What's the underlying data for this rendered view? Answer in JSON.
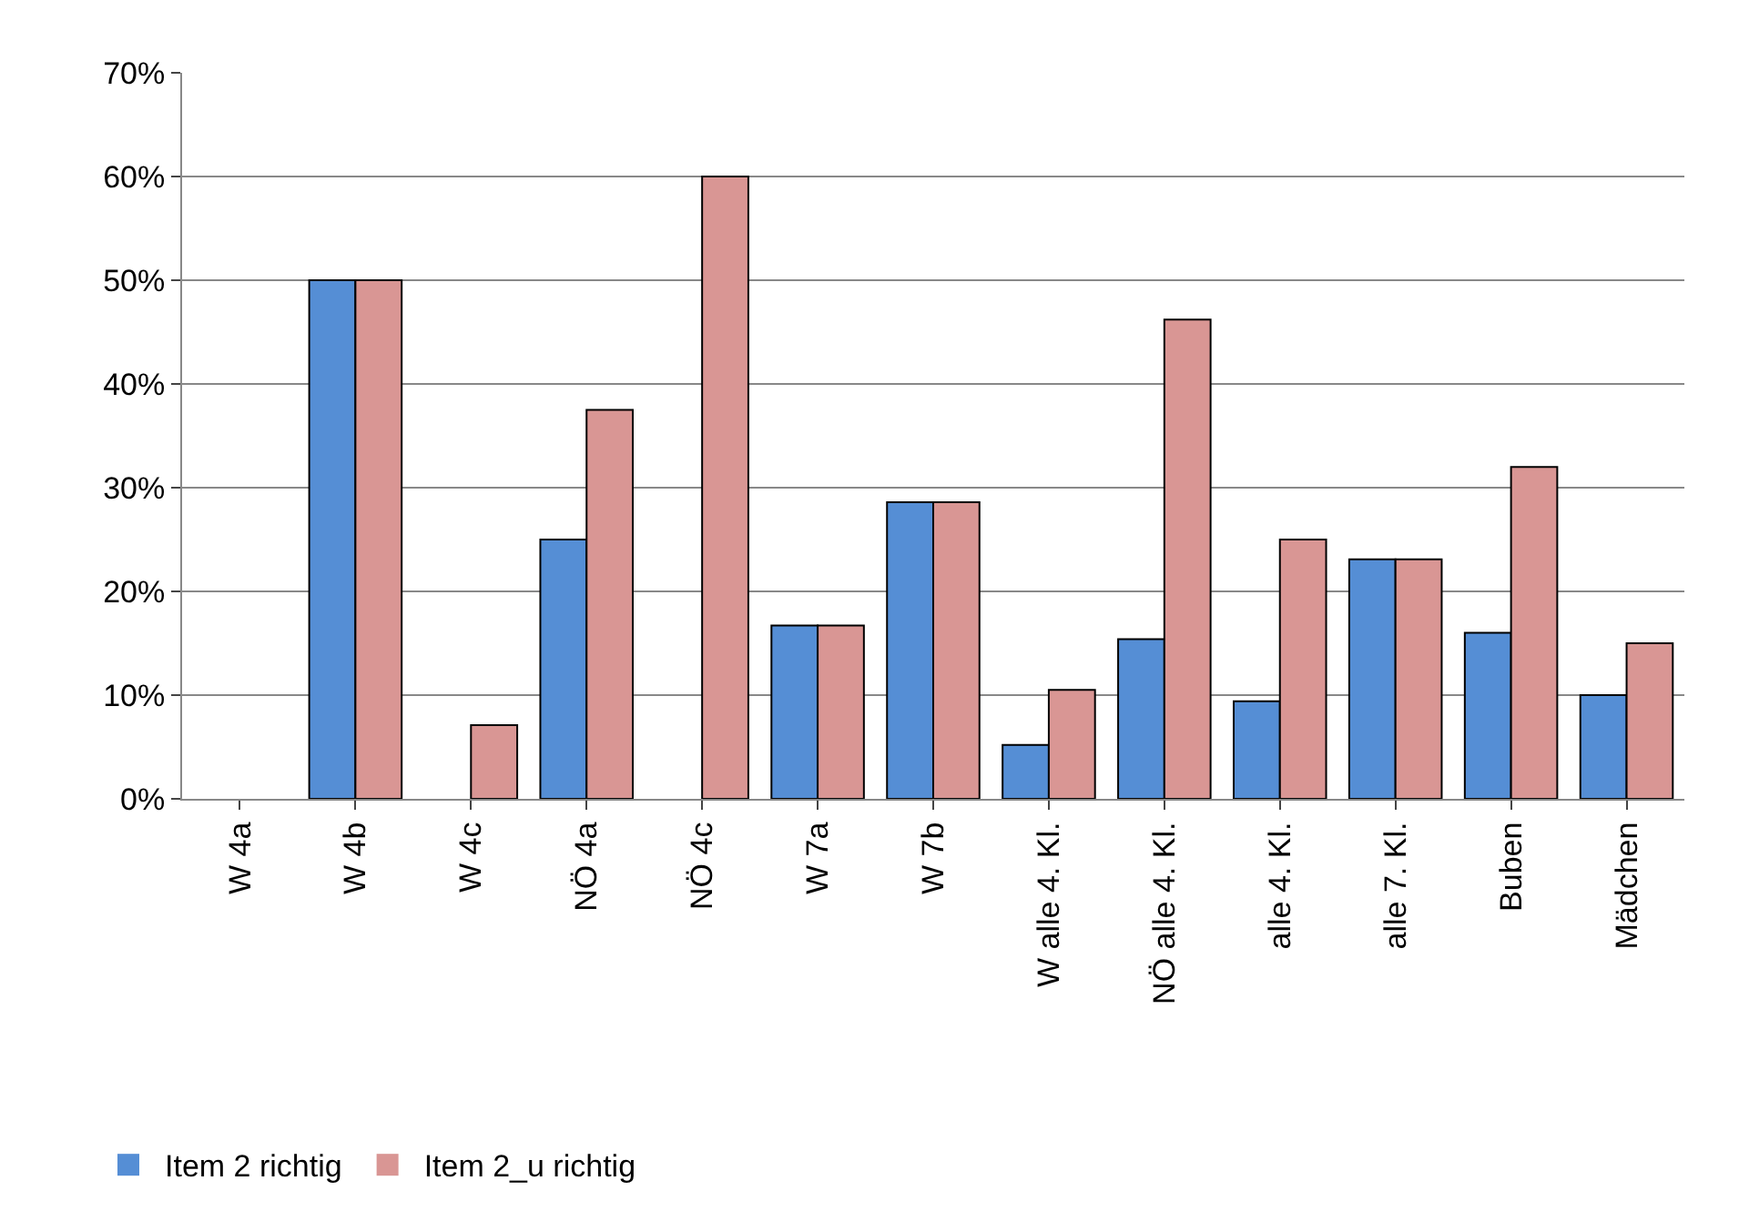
{
  "chart_data": {
    "type": "bar",
    "categories": [
      "W 4a",
      "W 4b",
      "W 4c",
      "NÖ 4a",
      "NÖ 4c",
      "W 7a",
      "W 7b",
      "W alle 4. Kl.",
      "NÖ alle 4. Kl.",
      "alle 4. Kl.",
      "alle 7. Kl.",
      "Buben",
      "Mädchen"
    ],
    "series": [
      {
        "name": "Item 2 richtig",
        "color": "#558ed5",
        "values": [
          0,
          50,
          0,
          25,
          0,
          16.7,
          28.6,
          5.2,
          15.4,
          9.4,
          23.1,
          16.0,
          10.0
        ]
      },
      {
        "name": "Item 2_u richtig",
        "color": "#d99694",
        "values": [
          0,
          50,
          7.1,
          37.5,
          60,
          16.7,
          28.6,
          10.5,
          46.2,
          25,
          23.1,
          32.0,
          15.0
        ]
      }
    ],
    "ylim": [
      0,
      70
    ],
    "yticks": [
      {
        "value": 0,
        "label": "0%"
      },
      {
        "value": 10,
        "label": "10%"
      },
      {
        "value": 20,
        "label": "20%"
      },
      {
        "value": 30,
        "label": "30%"
      },
      {
        "value": 40,
        "label": "40%"
      },
      {
        "value": 50,
        "label": "50%"
      },
      {
        "value": 60,
        "label": "60%"
      },
      {
        "value": 70,
        "label": "70%"
      }
    ],
    "grid": "y",
    "legend": "bottom left"
  }
}
